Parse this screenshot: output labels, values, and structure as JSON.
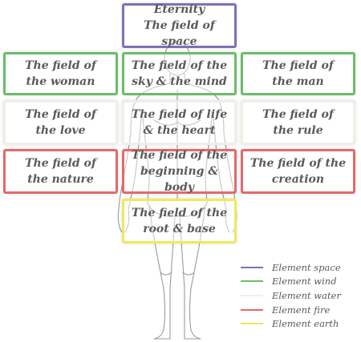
{
  "colors": {
    "space": "#7b72b8",
    "wind": "#6cbc6a",
    "water": "#efefe6",
    "fire": "#e36a6a",
    "earth": "#eeea5a"
  },
  "fields": [
    {
      "id": "eternity",
      "element": "space",
      "text": "Eternity\nThe field of space"
    },
    {
      "id": "woman",
      "element": "wind",
      "text": "The field of\nthe woman"
    },
    {
      "id": "sky-mind",
      "element": "wind",
      "text": "The field of the\nsky & the mind"
    },
    {
      "id": "man",
      "element": "wind",
      "text": "The field of\nthe man"
    },
    {
      "id": "love",
      "element": "water",
      "text": "The field of\nthe love"
    },
    {
      "id": "life-heart",
      "element": "water",
      "text": "The field of life\n& the heart"
    },
    {
      "id": "rule",
      "element": "water",
      "text": "The field of\nthe rule"
    },
    {
      "id": "nature",
      "element": "fire",
      "text": "The field of\nthe nature"
    },
    {
      "id": "beginning-body",
      "element": "fire",
      "text": "The field of the\nbeginning & body"
    },
    {
      "id": "creation",
      "element": "fire",
      "text": "The field of the\ncreation"
    },
    {
      "id": "root-base",
      "element": "earth",
      "text": "The field of the\nroot & base"
    }
  ],
  "legend": [
    {
      "element": "space",
      "label": "Element space"
    },
    {
      "element": "wind",
      "label": "Element wind"
    },
    {
      "element": "water",
      "label": "Element water"
    },
    {
      "element": "fire",
      "label": "Element fire"
    },
    {
      "element": "earth",
      "label": "Element earth"
    }
  ]
}
